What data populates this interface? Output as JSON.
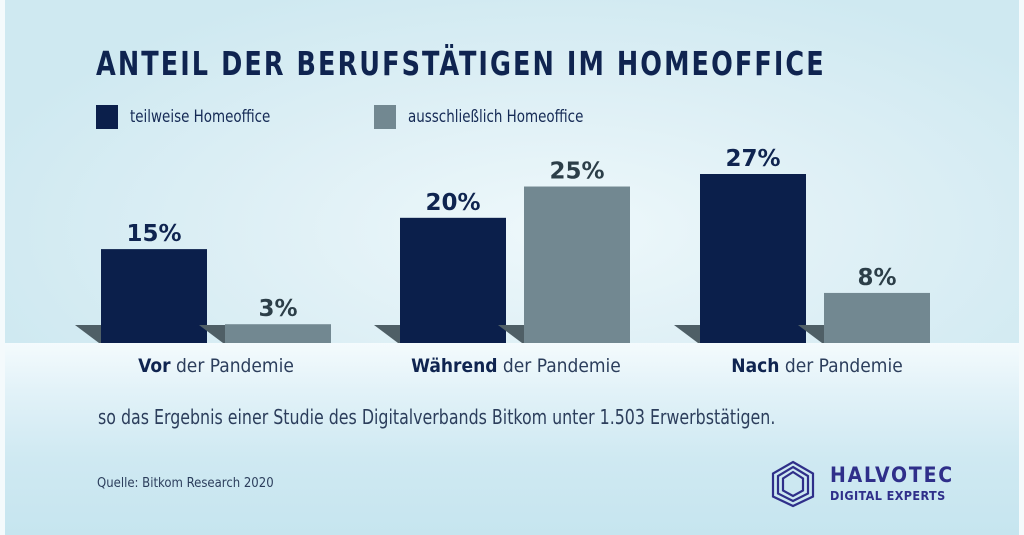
{
  "colors": {
    "series_dark": "#0b1f4b",
    "series_gray": "#728891",
    "shadow": "#4f5f66",
    "title": "#0f2450",
    "logo": "#2f2f8a"
  },
  "chart_data": {
    "type": "bar",
    "title": "ANTEIL DER BERUFSTÄTIGEN IM HOMEOFFICE",
    "categories": [
      {
        "bold": "Vor",
        "rest": " der Pandemie"
      },
      {
        "bold": "Während",
        "rest": " der Pandemie"
      },
      {
        "bold": "Nach",
        "rest": " der Pandemie"
      }
    ],
    "series": [
      {
        "name": "teilweise Homeoffice",
        "values": [
          15,
          20,
          27
        ],
        "labels": [
          "15%",
          "20%",
          "27%"
        ]
      },
      {
        "name": "ausschließlich Homeoffice",
        "values": [
          3,
          25,
          8
        ],
        "labels": [
          "3%",
          "25%",
          "8%"
        ]
      }
    ],
    "unit": "%",
    "xlabel": "",
    "ylabel": "",
    "ylim": [
      0,
      27
    ],
    "grid": false,
    "legend": "top-left"
  },
  "note": "so das Ergebnis einer Studie des Digitalverbands Bitkom unter 1.503 Erwerbstätigen.",
  "source": "Quelle: Bitkom Research 2020",
  "logo": {
    "name": "HALVOTEC",
    "tagline": "DIGITAL EXPERTS",
    "icon": "nested-hexagon-icon"
  }
}
